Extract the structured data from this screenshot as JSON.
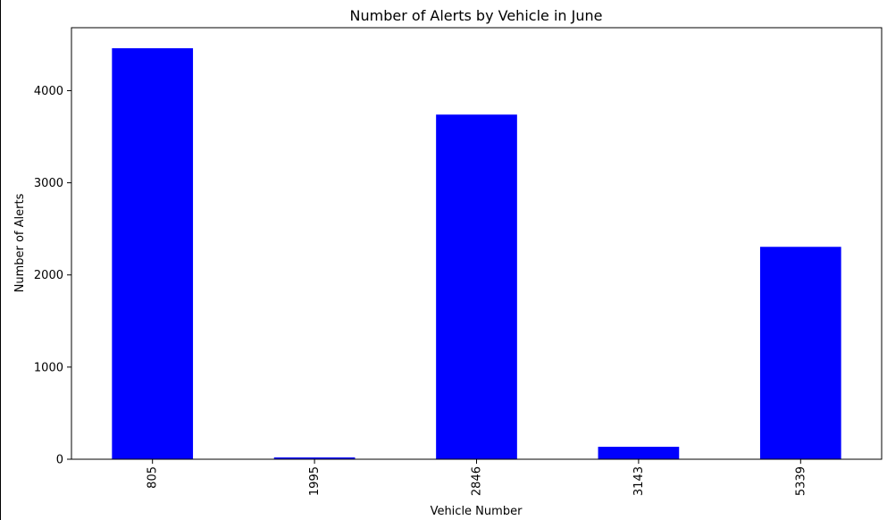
{
  "chart_data": {
    "type": "bar",
    "title": "Number of Alerts by Vehicle in June",
    "xlabel": "Vehicle Number",
    "ylabel": "Number of Alerts",
    "categories": [
      "805",
      "1995",
      "2846",
      "3143",
      "5339"
    ],
    "values": [
      4460,
      20,
      3740,
      135,
      2305
    ],
    "yticks": [
      0,
      1000,
      2000,
      3000,
      4000
    ],
    "ylim": [
      0,
      4683
    ],
    "bar_color": "#0000ff",
    "grid": false,
    "legend": false
  }
}
